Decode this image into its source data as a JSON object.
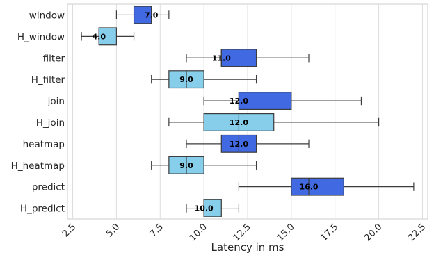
{
  "chart_data": {
    "type": "box",
    "orientation": "horizontal",
    "xlabel": "Latency in ms",
    "ylabel": "",
    "xlim": [
      2.2,
      22.8
    ],
    "x_ticks": [
      2.5,
      5.0,
      7.5,
      10.0,
      12.5,
      15.0,
      17.5,
      20.0,
      22.5
    ],
    "x_tick_labels": [
      "2.5",
      "5.0",
      "7.5",
      "10.0",
      "12.5",
      "15.0",
      "17.5",
      "20.0",
      "22.5"
    ],
    "grid": "vertical",
    "colors": {
      "default": "#4169E1",
      "hinted": "#87CEEB",
      "line": "#3c3c3c",
      "grid": "#dddddd"
    },
    "categories": [
      "window",
      "H_window",
      "filter",
      "H_filter",
      "join",
      "H_join",
      "heatmap",
      "H_heatmap",
      "predict",
      "H_predict"
    ],
    "boxes": [
      {
        "name": "window",
        "whisker_low": 5,
        "q1": 6,
        "median": 7,
        "q3": 7,
        "whisker_high": 8,
        "label": "7.0",
        "color": "#4169E1"
      },
      {
        "name": "H_window",
        "whisker_low": 3,
        "q1": 4,
        "median": 4,
        "q3": 5,
        "whisker_high": 6,
        "label": "4.0",
        "color": "#87CEEB"
      },
      {
        "name": "filter",
        "whisker_low": 9,
        "q1": 11,
        "median": 11,
        "q3": 13,
        "whisker_high": 16,
        "label": "11.0",
        "color": "#4169E1"
      },
      {
        "name": "H_filter",
        "whisker_low": 7,
        "q1": 8,
        "median": 9,
        "q3": 10,
        "whisker_high": 13,
        "label": "9.0",
        "color": "#87CEEB"
      },
      {
        "name": "join",
        "whisker_low": 10,
        "q1": 12,
        "median": 12,
        "q3": 15,
        "whisker_high": 19,
        "label": "12.0",
        "color": "#4169E1"
      },
      {
        "name": "H_join",
        "whisker_low": 8,
        "q1": 10,
        "median": 12,
        "q3": 14,
        "whisker_high": 20,
        "label": "12.0",
        "color": "#87CEEB"
      },
      {
        "name": "heatmap",
        "whisker_low": 9,
        "q1": 11,
        "median": 12,
        "q3": 13,
        "whisker_high": 16,
        "label": "12.0",
        "color": "#4169E1"
      },
      {
        "name": "H_heatmap",
        "whisker_low": 7,
        "q1": 8,
        "median": 9,
        "q3": 10,
        "whisker_high": 13,
        "label": "9.0",
        "color": "#87CEEB"
      },
      {
        "name": "predict",
        "whisker_low": 12,
        "q1": 15,
        "median": 16,
        "q3": 18,
        "whisker_high": 22,
        "label": "16.0",
        "color": "#4169E1"
      },
      {
        "name": "H_predict",
        "whisker_low": 9,
        "q1": 10,
        "median": 10,
        "q3": 11,
        "whisker_high": 12,
        "label": "10.0",
        "color": "#87CEEB"
      }
    ]
  }
}
